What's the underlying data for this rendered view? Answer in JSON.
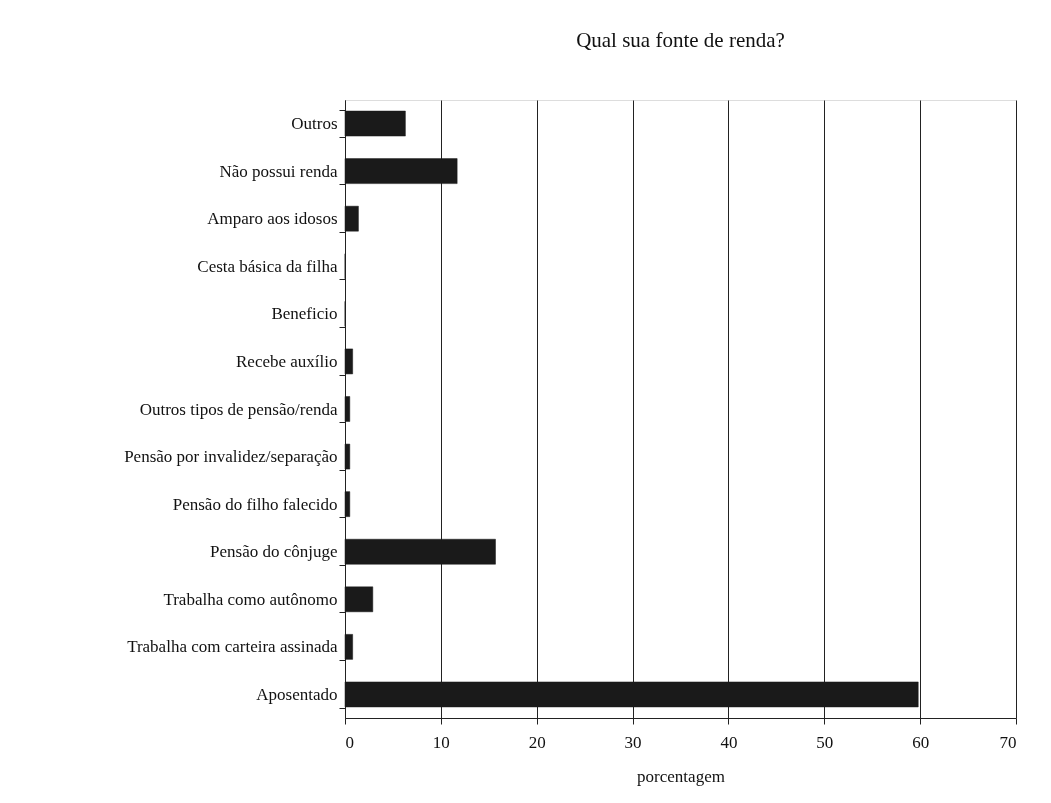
{
  "chart_data": {
    "type": "bar",
    "orientation": "horizontal",
    "title": "Qual sua fonte de renda?",
    "xlabel": "porcentagem",
    "categories": [
      "Outros",
      "Não possui renda",
      "Amparo aos idosos",
      "Cesta básica da filha",
      "Beneficio",
      "Recebe auxílio",
      "Outros tipos de pensão/renda",
      "Pensão por invalidez/separação",
      "Pensão do filho falecido",
      "Pensão do cônjuge",
      "Trabalha como autônomo",
      "Trabalha com carteira assinada",
      "Aposentado"
    ],
    "values": [
      6.3,
      11.7,
      1.4,
      0,
      0,
      0.8,
      0.5,
      0.5,
      0.5,
      15.7,
      2.9,
      0.8,
      59.8
    ],
    "color": "#1a1a1a",
    "xlim": [
      0,
      70
    ],
    "xticks": [
      0,
      10,
      20,
      30,
      40,
      50,
      60,
      70
    ],
    "grid": "x"
  }
}
